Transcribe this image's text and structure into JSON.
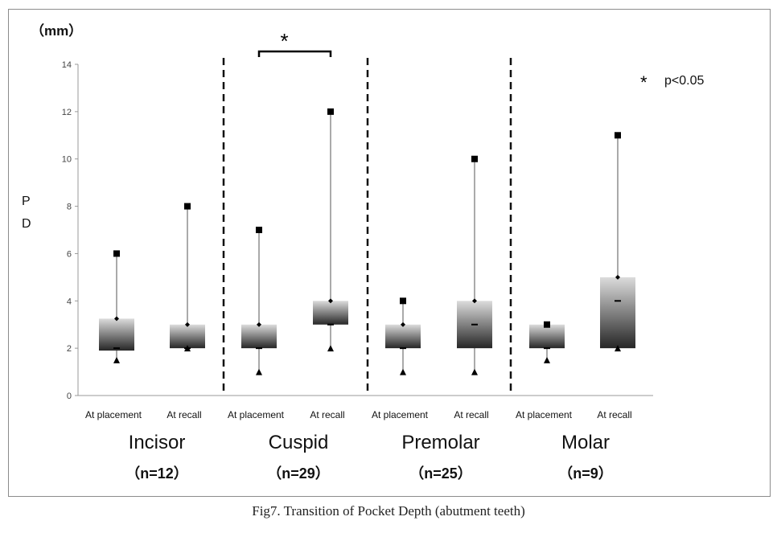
{
  "caption": "Fig7. Transition of Pocket Depth (abutment teeth)",
  "chart_data": {
    "type": "box",
    "yunit": "（mm）",
    "ylabel": "P D",
    "ylim": [
      0,
      14
    ],
    "yticks": [
      0,
      2,
      4,
      6,
      8,
      10,
      12,
      14
    ],
    "grid": false,
    "legend": {
      "symbol": "*",
      "text": "p<0.05",
      "position": "top-right"
    },
    "significance": [
      {
        "group": "Cuspid",
        "symbol": "*"
      }
    ],
    "groups": [
      {
        "name": "Incisor",
        "n": "（n=12）",
        "boxes": [
          {
            "label": "At placement",
            "min": 1.5,
            "q1": 1.9,
            "median": 2,
            "q3": 3.25,
            "max": 6
          },
          {
            "label": "At recall",
            "min": 2,
            "q1": 2,
            "median": 2,
            "q3": 3,
            "max": 8
          }
        ]
      },
      {
        "name": "Cuspid",
        "n": "（n=29）",
        "boxes": [
          {
            "label": "At placement",
            "min": 1,
            "q1": 2,
            "median": 2,
            "q3": 3,
            "max": 7
          },
          {
            "label": "At recall",
            "min": 2,
            "q1": 3,
            "median": 3,
            "q3": 4,
            "max": 12
          }
        ]
      },
      {
        "name": "Premolar",
        "n": "（n=25）",
        "boxes": [
          {
            "label": "At placement",
            "min": 1,
            "q1": 2,
            "median": 2,
            "q3": 3,
            "max": 4
          },
          {
            "label": "At recall",
            "min": 1,
            "q1": 2,
            "median": 3,
            "q3": 4,
            "max": 10
          }
        ]
      },
      {
        "name": "Molar",
        "n": "（n=9）",
        "boxes": [
          {
            "label": "At placement",
            "min": 1.5,
            "q1": 2,
            "median": 2,
            "q3": 3,
            "max": 3
          },
          {
            "label": "At recall",
            "min": 2,
            "q1": 2,
            "median": 4,
            "q3": 5,
            "max": 11
          }
        ]
      }
    ]
  }
}
